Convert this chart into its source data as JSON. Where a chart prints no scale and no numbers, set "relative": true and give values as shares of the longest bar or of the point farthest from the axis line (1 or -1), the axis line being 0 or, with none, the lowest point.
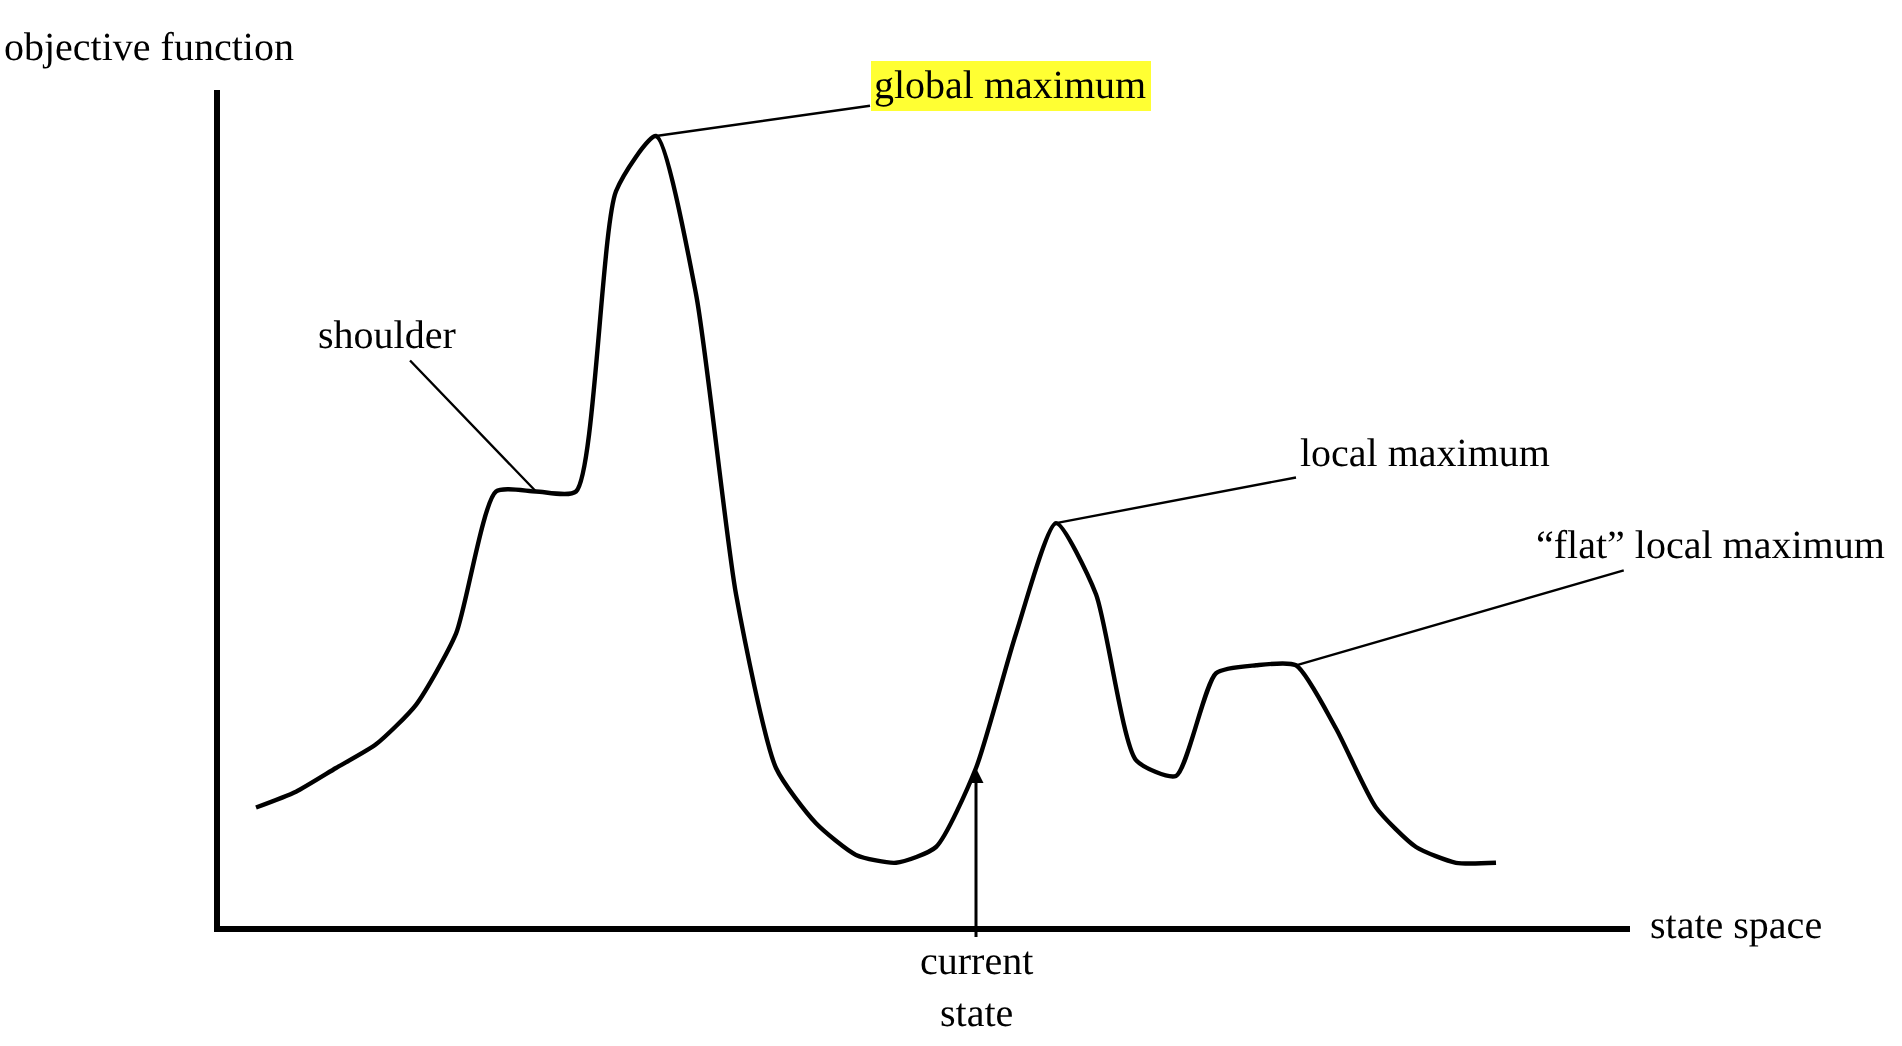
{
  "chart_data": {
    "type": "line",
    "relative": true,
    "xlabel": "state space",
    "ylabel": "objective function",
    "color": "#000000",
    "categories": [
      null,
      null,
      null,
      null,
      null,
      null,
      null,
      null,
      null,
      null,
      null,
      null,
      null,
      null,
      null,
      null,
      null,
      null,
      null,
      null,
      null,
      null,
      null,
      null,
      null,
      null,
      null,
      null,
      null,
      null,
      null,
      null
    ],
    "values": [
      0.15,
      0.17,
      0.2,
      0.23,
      0.28,
      0.37,
      0.55,
      0.55,
      0.55,
      0.93,
      1.0,
      0.8,
      0.42,
      0.2,
      0.13,
      0.09,
      0.08,
      0.1,
      0.2,
      0.37,
      0.51,
      0.42,
      0.21,
      0.19,
      0.32,
      0.33,
      0.33,
      0.25,
      0.15,
      0.1,
      0.08,
      0.08
    ],
    "annotations": [
      "global maximum",
      "shoulder",
      "local maximum",
      "“flat” local maximum",
      "current\nstate"
    ],
    "marker": "none",
    "line_style": "solid"
  }
}
